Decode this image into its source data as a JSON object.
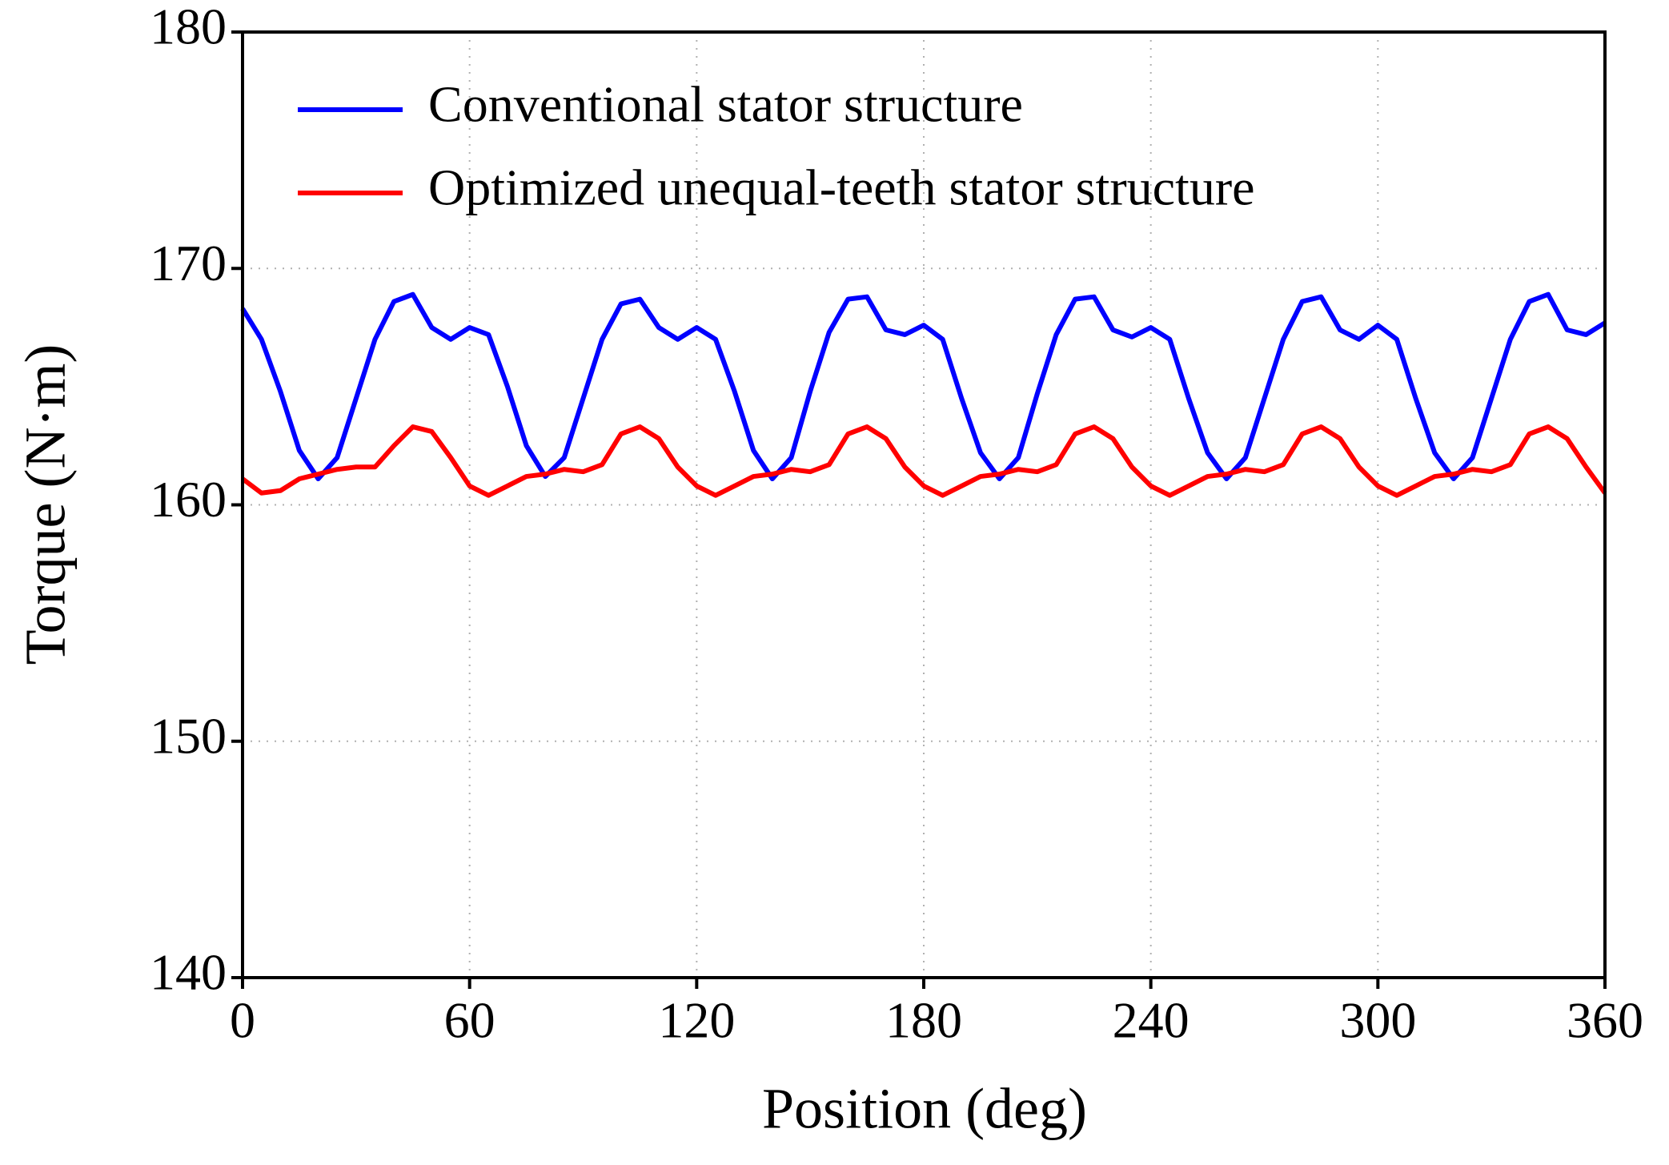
{
  "chart_data": {
    "type": "line",
    "xlabel": "Position (deg)",
    "ylabel": "Torque (N·m)",
    "x": [
      0,
      5,
      10,
      15,
      20,
      25,
      30,
      35,
      40,
      45,
      50,
      55,
      60,
      65,
      70,
      75,
      80,
      85,
      90,
      95,
      100,
      105,
      110,
      115,
      120,
      125,
      130,
      135,
      140,
      145,
      150,
      155,
      160,
      165,
      170,
      175,
      180,
      185,
      190,
      195,
      200,
      205,
      210,
      215,
      220,
      225,
      230,
      235,
      240,
      245,
      250,
      255,
      260,
      265,
      270,
      275,
      280,
      285,
      290,
      295,
      300,
      305,
      310,
      315,
      320,
      325,
      330,
      335,
      340,
      345,
      350,
      355,
      360
    ],
    "series": [
      {
        "name": "Conventional stator structure",
        "color": "#0000ff",
        "values": [
          168.3,
          167,
          164.8,
          162.3,
          161.1,
          162,
          164.5,
          167,
          168.6,
          168.9,
          167.5,
          167,
          167.5,
          167.2,
          165,
          162.5,
          161.2,
          162,
          164.5,
          167,
          168.5,
          168.7,
          167.5,
          167,
          167.5,
          167,
          164.8,
          162.3,
          161.1,
          162,
          164.8,
          167.3,
          168.7,
          168.8,
          167.4,
          167.2,
          167.6,
          167,
          164.5,
          162.2,
          161.1,
          162,
          164.7,
          167.2,
          168.7,
          168.8,
          167.4,
          167.1,
          167.5,
          167,
          164.5,
          162.2,
          161.1,
          162,
          164.5,
          167,
          168.6,
          168.8,
          167.4,
          167,
          167.6,
          167,
          164.5,
          162.2,
          161.1,
          162,
          164.5,
          167,
          168.6,
          168.9,
          167.4,
          167.2,
          167.7
        ]
      },
      {
        "name": "Optimized unequal-teeth stator structure",
        "color": "#ff0000",
        "values": [
          161.1,
          160.5,
          160.6,
          161.1,
          161.3,
          161.5,
          161.6,
          161.6,
          162.5,
          163.3,
          163.1,
          162,
          160.8,
          160.4,
          160.8,
          161.2,
          161.3,
          161.5,
          161.4,
          161.7,
          163,
          163.3,
          162.8,
          161.6,
          160.8,
          160.4,
          160.8,
          161.2,
          161.3,
          161.5,
          161.4,
          161.7,
          163,
          163.3,
          162.8,
          161.6,
          160.8,
          160.4,
          160.8,
          161.2,
          161.3,
          161.5,
          161.4,
          161.7,
          163,
          163.3,
          162.8,
          161.6,
          160.8,
          160.4,
          160.8,
          161.2,
          161.3,
          161.5,
          161.4,
          161.7,
          163,
          163.3,
          162.8,
          161.6,
          160.8,
          160.4,
          160.8,
          161.2,
          161.3,
          161.5,
          161.4,
          161.7,
          163,
          163.3,
          162.8,
          161.6,
          160.5
        ]
      }
    ],
    "xlim": [
      0,
      360
    ],
    "xticks": [
      0,
      60,
      120,
      180,
      240,
      300,
      360
    ],
    "ylim": [
      140,
      180
    ],
    "yticks": [
      140,
      150,
      160,
      170,
      180
    ],
    "grid": true,
    "legend": "upper left"
  }
}
